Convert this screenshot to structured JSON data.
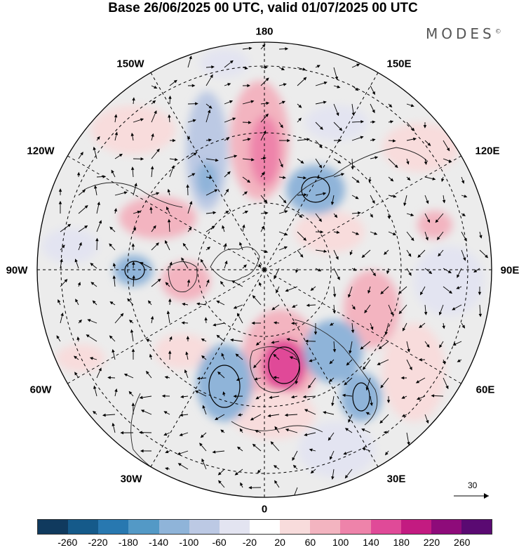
{
  "title": "Base 26/06/2025 00 UTC, valid 01/07/2025 00 UTC",
  "brand": {
    "name": "MODES",
    "mark": "©"
  },
  "map": {
    "projection": "north polar stereographic",
    "longitude_labels": {
      "top": "180",
      "bottom": "0",
      "left": "90W",
      "right": "90E",
      "upper_left_1": "150W",
      "upper_left_2": "120W",
      "upper_right_1": "150E",
      "upper_right_2": "120E",
      "lower_left_1": "60W",
      "lower_left_2": "30W",
      "lower_right_1": "60E",
      "lower_right_2": "30E"
    },
    "anomaly_centers": [
      {
        "id": "pacific-positive",
        "sign": "positive",
        "level": 120
      },
      {
        "id": "east-siberia-negative",
        "sign": "negative",
        "level": -100
      },
      {
        "id": "north-sea-positive",
        "sign": "positive",
        "level": 160
      },
      {
        "id": "west-russia-negative",
        "sign": "negative",
        "level": -100
      },
      {
        "id": "north-atlantic-negative",
        "sign": "negative",
        "level": -120
      },
      {
        "id": "hudson-negative",
        "sign": "negative",
        "level": -120
      },
      {
        "id": "gulf-alaska-negative",
        "sign": "negative",
        "level": -100
      }
    ]
  },
  "reference_vector": {
    "label": "30"
  },
  "colorbar": {
    "colors": [
      "#103a5e",
      "#155a8a",
      "#2878b0",
      "#5399c6",
      "#8fb4d9",
      "#bcc9e4",
      "#e3e4f1",
      "#ffffff",
      "#f8dcdc",
      "#f3b4c0",
      "#ee83aa",
      "#e04a98",
      "#c31b81",
      "#8e0b7a",
      "#5a0a72"
    ],
    "ticks": [
      "-260",
      "-220",
      "-180",
      "-140",
      "-100",
      "-60",
      "-20",
      "20",
      "60",
      "100",
      "140",
      "180",
      "220",
      "260"
    ]
  }
}
